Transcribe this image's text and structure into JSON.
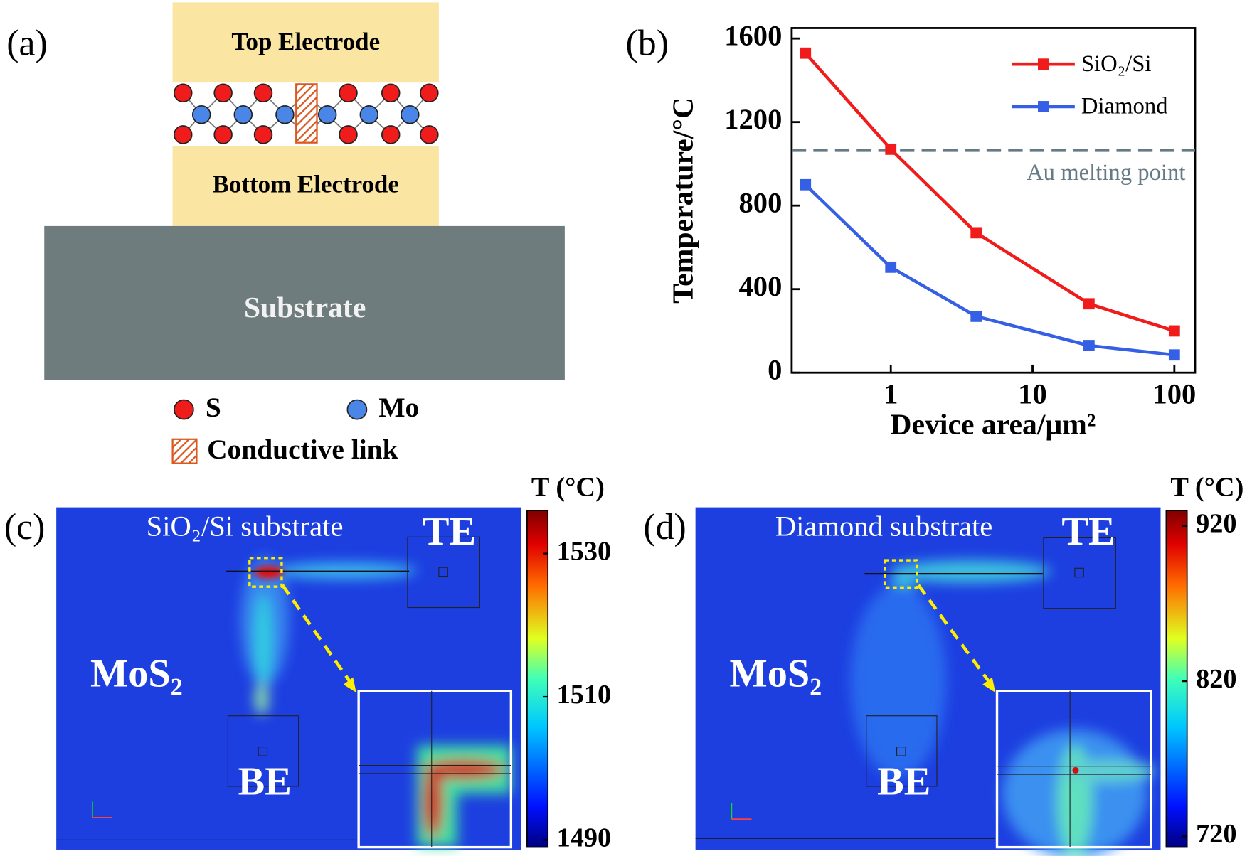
{
  "panel_a": {
    "label": "(a)",
    "top_electrode": "Top Electrode",
    "bottom_electrode": "Bottom Electrode",
    "substrate": "Substrate",
    "legend": [
      "S",
      "Mo",
      "Conductive link"
    ]
  },
  "chart_data": {
    "type": "line",
    "panel_label": "(b)",
    "x_label": "Device area/μm²",
    "y_label": "Temperature/°C",
    "x": [
      0.25,
      1,
      4,
      25,
      100
    ],
    "xlog": true,
    "xlim": [
      0.2,
      140
    ],
    "xticks": [
      1,
      10,
      100
    ],
    "ylim": [
      0,
      1650
    ],
    "yticks": [
      0,
      400,
      800,
      1200,
      1600
    ],
    "legend": "upper right",
    "series": [
      {
        "name": "SiO₂/Si",
        "color": "#f01b1b",
        "values": [
          1530,
          1070,
          670,
          330,
          200
        ]
      },
      {
        "name": "Diamond",
        "color": "#3560e6",
        "values": [
          900,
          505,
          270,
          130,
          85
        ]
      }
    ],
    "reference_line": {
      "label": "Au melting point",
      "value": 1064,
      "color": "#667a85"
    }
  },
  "panel_c": {
    "label": "(c)",
    "title": "SiO₂/Si substrate",
    "material": "MoS₂",
    "top": "TE",
    "bottom": "BE",
    "colorbar": {
      "title": "T (°C)",
      "lim": [
        1489,
        1536
      ],
      "ticks": [
        1490,
        1510,
        1530
      ]
    }
  },
  "panel_d": {
    "label": "(d)",
    "title": "Diamond substrate",
    "material": "MoS₂",
    "top": "TE",
    "bottom": "BE",
    "colorbar": {
      "title": "T (°C)",
      "lim": [
        713,
        930
      ],
      "ticks": [
        720,
        820,
        920
      ]
    }
  }
}
